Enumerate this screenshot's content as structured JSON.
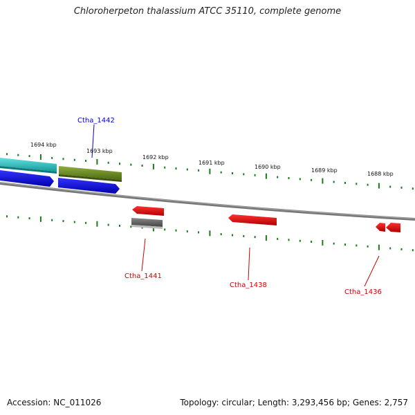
{
  "title": "Chloroherpeton thalassium ATCC 35110, complete genome",
  "footer": {
    "accession": "Accession: NC_011026",
    "info": "Topology: circular; Length: 3,293,456 bp; Genes: 2,757"
  },
  "ticks": [
    "1694 kbp",
    "1693 kbp",
    "1692 kbp",
    "1691 kbp",
    "1690 kbp",
    "1689 kbp",
    "1688 kbp"
  ],
  "gene_labels": {
    "forward": [
      "Ctha_1442"
    ],
    "reverse": [
      "Ctha_1441",
      "Ctha_1438",
      "Ctha_1436"
    ]
  },
  "colors": {
    "forward_label": "#0000cc",
    "reverse_label": "#cc0000",
    "tick": "#1a7a1a",
    "backbone": "#808080",
    "cds_blue": "#0000ee",
    "cds_cyan": "#33cccc",
    "cds_olive": "#6b8e23",
    "cds_red": "#ee0000",
    "cds_gray": "#666666"
  }
}
